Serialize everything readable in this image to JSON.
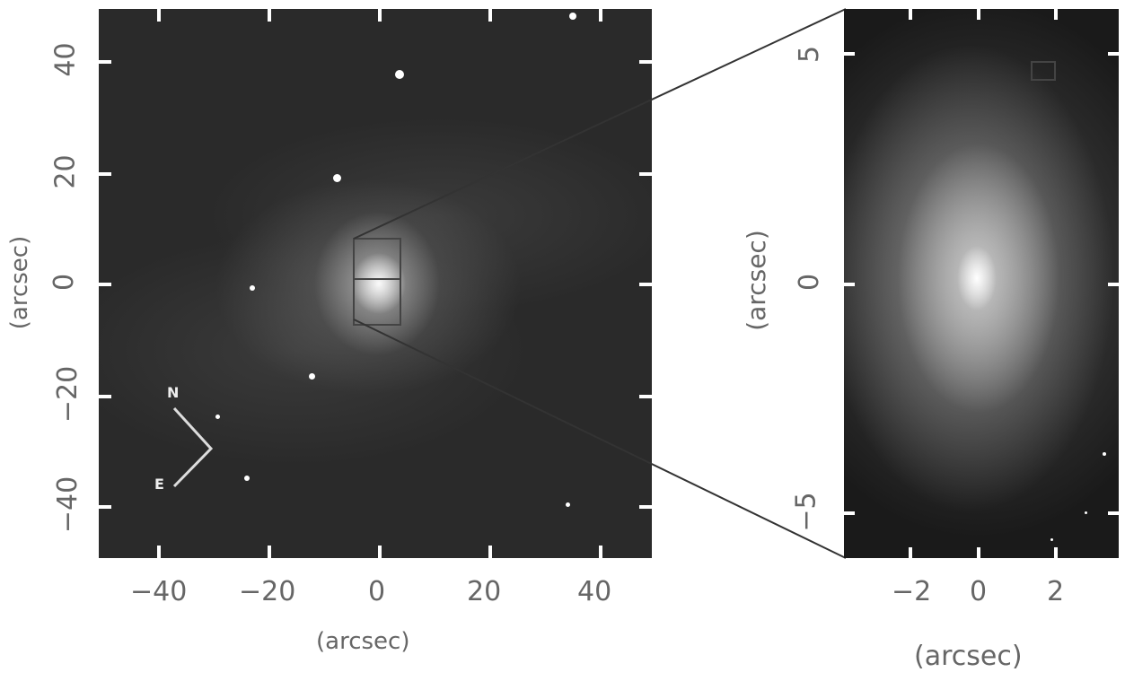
{
  "left_panel": {
    "x_ticks": [
      "−40",
      "−20",
      "0",
      "20",
      "40"
    ],
    "y_ticks": [
      "40",
      "20",
      "0",
      "−20",
      "−40"
    ],
    "x_axis_label": "(arcsec)",
    "y_axis_label": "(arcsec)",
    "compass": {
      "north": "N",
      "east": "E"
    }
  },
  "right_panel": {
    "x_ticks": [
      "−2",
      "0",
      "2"
    ],
    "y_ticks": [
      "5",
      "0",
      "−5"
    ],
    "x_axis_label": "(arcsec)",
    "y_axis_label": "(arcsec)"
  },
  "colors": {
    "image_bg": "#2a2a2a",
    "zoom_lines": "#333333",
    "axis_text": "#666666"
  }
}
